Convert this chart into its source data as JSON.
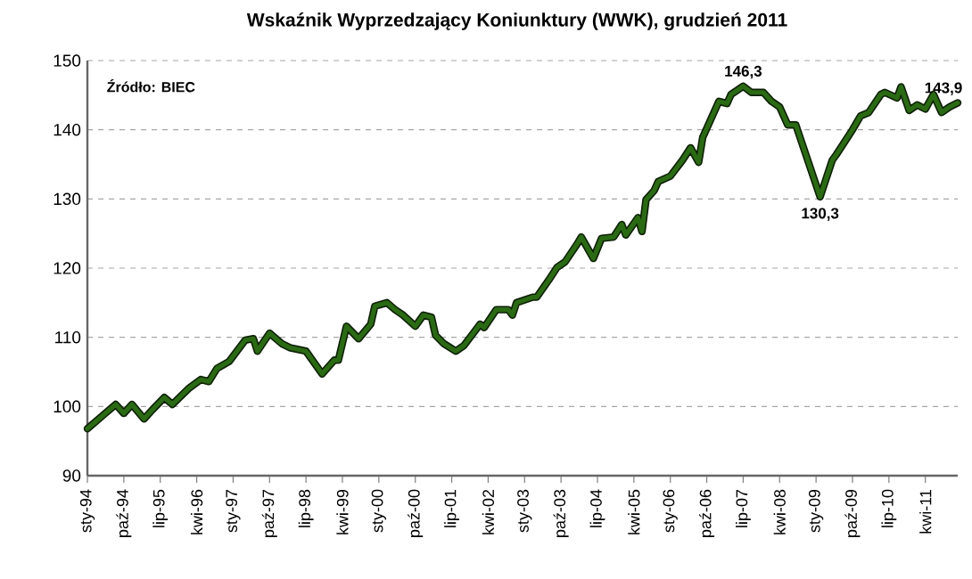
{
  "chart_data": {
    "type": "line",
    "title": "Wskaźnik Wyprzedzający Koniunktury (WWK), grudzień 2011",
    "annotations": [
      "Źródło: BIEC",
      {
        "text": "146,3",
        "x": "2007-07",
        "y": 146.3
      },
      {
        "text": "130,3",
        "x": "2009-02",
        "y": 130.3
      },
      {
        "text": "143,9",
        "x": "2011-12",
        "y": 143.9
      }
    ],
    "color": "#2b6a14",
    "grid": "y",
    "xlim": [
      "1994-01",
      "2011-12"
    ],
    "ylim": [
      90,
      150
    ],
    "yticks": [
      90,
      100,
      110,
      120,
      130,
      140,
      150
    ],
    "xticks": [
      {
        "value": "1994-01",
        "label": "sty-94"
      },
      {
        "value": "1994-10",
        "label": "paź-94"
      },
      {
        "value": "1995-07",
        "label": "lip-95"
      },
      {
        "value": "1996-04",
        "label": "kwi-96"
      },
      {
        "value": "1997-01",
        "label": "sty-97"
      },
      {
        "value": "1997-10",
        "label": "paź-97"
      },
      {
        "value": "1998-07",
        "label": "lip-98"
      },
      {
        "value": "1999-04",
        "label": "kwi-99"
      },
      {
        "value": "2000-01",
        "label": "sty-00"
      },
      {
        "value": "2000-10",
        "label": "paź-00"
      },
      {
        "value": "2001-07",
        "label": "lip-01"
      },
      {
        "value": "2002-04",
        "label": "kwi-02"
      },
      {
        "value": "2003-01",
        "label": "sty-03"
      },
      {
        "value": "2003-10",
        "label": "paź-03"
      },
      {
        "value": "2004-07",
        "label": "lip-04"
      },
      {
        "value": "2005-04",
        "label": "kwi-05"
      },
      {
        "value": "2006-01",
        "label": "sty-06"
      },
      {
        "value": "2006-10",
        "label": "paź-06"
      },
      {
        "value": "2007-07",
        "label": "lip-07"
      },
      {
        "value": "2008-04",
        "label": "kwi-08"
      },
      {
        "value": "2009-01",
        "label": "sty-09"
      },
      {
        "value": "2009-10",
        "label": "paź-09"
      },
      {
        "value": "2010-07",
        "label": "lip-10"
      },
      {
        "value": "2011-04",
        "label": "kwi-11"
      }
    ],
    "x": [
      "1994-01",
      "1994-05",
      "1994-08",
      "1994-10",
      "1994-12",
      "1995-03",
      "1995-05",
      "1995-08",
      "1995-10",
      "1996-02",
      "1996-05",
      "1996-07",
      "1996-09",
      "1996-12",
      "1997-04",
      "1997-06",
      "1997-07",
      "1997-10",
      "1998-01",
      "1998-03",
      "1998-07",
      "1998-11",
      "1999-02",
      "1999-03",
      "1999-05",
      "1999-08",
      "1999-11",
      "1999-12",
      "2000-03",
      "2000-05",
      "2000-07",
      "2000-10",
      "2000-12",
      "2001-02",
      "2001-03",
      "2001-05",
      "2001-08",
      "2001-10",
      "2002-02",
      "2002-03",
      "2002-06",
      "2002-09",
      "2002-10",
      "2002-11",
      "2003-03",
      "2003-04",
      "2003-07",
      "2003-09",
      "2003-11",
      "2004-02",
      "2004-03",
      "2004-06",
      "2004-08",
      "2004-11",
      "2005-01",
      "2005-02",
      "2005-05",
      "2005-06",
      "2005-07",
      "2005-09",
      "2005-10",
      "2006-01",
      "2006-04",
      "2006-06",
      "2006-08",
      "2006-09",
      "2007-01",
      "2007-03",
      "2007-04",
      "2007-07",
      "2007-09",
      "2007-12",
      "2008-02",
      "2008-04",
      "2008-06",
      "2008-08",
      "2009-02",
      "2009-05",
      "2009-06",
      "2009-10",
      "2009-12",
      "2010-02",
      "2010-05",
      "2010-06",
      "2010-09",
      "2010-10",
      "2010-12",
      "2011-02",
      "2011-04",
      "2011-06",
      "2011-08",
      "2011-10",
      "2011-12"
    ],
    "values": [
      96.8,
      98.8,
      100.3,
      99.0,
      100.3,
      98.2,
      99.5,
      101.3,
      100.3,
      102.6,
      103.9,
      103.6,
      105.5,
      106.5,
      109.6,
      109.8,
      108.0,
      110.6,
      109.1,
      108.5,
      108.0,
      104.7,
      106.7,
      106.7,
      111.6,
      109.8,
      111.9,
      114.5,
      115.0,
      114.0,
      113.2,
      111.6,
      113.2,
      112.9,
      110.3,
      109.1,
      108.0,
      108.8,
      111.9,
      111.4,
      114.0,
      114.0,
      113.2,
      115.0,
      115.8,
      115.8,
      118.3,
      120.1,
      120.9,
      123.5,
      124.5,
      121.4,
      124.3,
      124.5,
      126.3,
      124.8,
      127.3,
      125.3,
      129.9,
      131.2,
      132.5,
      133.3,
      135.6,
      137.4,
      135.3,
      138.9,
      144.1,
      143.8,
      145.1,
      146.3,
      145.4,
      145.4,
      144.1,
      143.3,
      140.7,
      140.7,
      130.3,
      135.6,
      136.4,
      140.0,
      142.0,
      142.5,
      145.1,
      145.4,
      144.6,
      146.2,
      142.8,
      143.6,
      143.0,
      145.1,
      142.5,
      143.3,
      143.9
    ]
  }
}
